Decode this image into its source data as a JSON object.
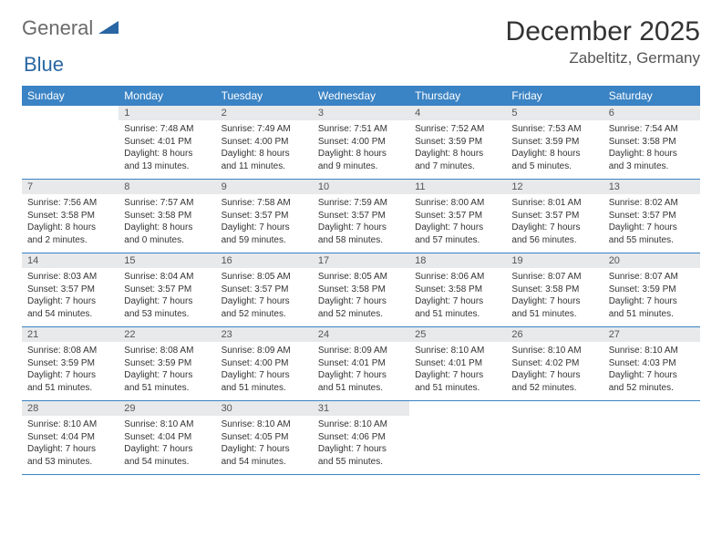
{
  "logo": {
    "text1": "General",
    "text2": "Blue"
  },
  "title": "December 2025",
  "location": "Zabeltitz, Germany",
  "colors": {
    "header_bg": "#3a83c4",
    "header_text": "#ffffff",
    "daynum_bg": "#e7e9eb",
    "daynum_text": "#555555",
    "row_border": "#3a83c4",
    "logo_gray": "#6a6a6a",
    "logo_blue": "#2966a3",
    "body_text": "#333333",
    "background": "#ffffff"
  },
  "typography": {
    "title_fontsize": 30,
    "location_fontsize": 17,
    "weekday_fontsize": 12,
    "daynum_fontsize": 11,
    "content_fontsize": 10,
    "font_family": "Arial"
  },
  "layout": {
    "columns": 7,
    "rows": 5,
    "first_weekday_offset": 1
  },
  "weekdays": [
    "Sunday",
    "Monday",
    "Tuesday",
    "Wednesday",
    "Thursday",
    "Friday",
    "Saturday"
  ],
  "days": [
    {
      "n": 1,
      "sr": "7:48 AM",
      "ss": "4:01 PM",
      "dl": "8 hours and 13 minutes."
    },
    {
      "n": 2,
      "sr": "7:49 AM",
      "ss": "4:00 PM",
      "dl": "8 hours and 11 minutes."
    },
    {
      "n": 3,
      "sr": "7:51 AM",
      "ss": "4:00 PM",
      "dl": "8 hours and 9 minutes."
    },
    {
      "n": 4,
      "sr": "7:52 AM",
      "ss": "3:59 PM",
      "dl": "8 hours and 7 minutes."
    },
    {
      "n": 5,
      "sr": "7:53 AM",
      "ss": "3:59 PM",
      "dl": "8 hours and 5 minutes."
    },
    {
      "n": 6,
      "sr": "7:54 AM",
      "ss": "3:58 PM",
      "dl": "8 hours and 3 minutes."
    },
    {
      "n": 7,
      "sr": "7:56 AM",
      "ss": "3:58 PM",
      "dl": "8 hours and 2 minutes."
    },
    {
      "n": 8,
      "sr": "7:57 AM",
      "ss": "3:58 PM",
      "dl": "8 hours and 0 minutes."
    },
    {
      "n": 9,
      "sr": "7:58 AM",
      "ss": "3:57 PM",
      "dl": "7 hours and 59 minutes."
    },
    {
      "n": 10,
      "sr": "7:59 AM",
      "ss": "3:57 PM",
      "dl": "7 hours and 58 minutes."
    },
    {
      "n": 11,
      "sr": "8:00 AM",
      "ss": "3:57 PM",
      "dl": "7 hours and 57 minutes."
    },
    {
      "n": 12,
      "sr": "8:01 AM",
      "ss": "3:57 PM",
      "dl": "7 hours and 56 minutes."
    },
    {
      "n": 13,
      "sr": "8:02 AM",
      "ss": "3:57 PM",
      "dl": "7 hours and 55 minutes."
    },
    {
      "n": 14,
      "sr": "8:03 AM",
      "ss": "3:57 PM",
      "dl": "7 hours and 54 minutes."
    },
    {
      "n": 15,
      "sr": "8:04 AM",
      "ss": "3:57 PM",
      "dl": "7 hours and 53 minutes."
    },
    {
      "n": 16,
      "sr": "8:05 AM",
      "ss": "3:57 PM",
      "dl": "7 hours and 52 minutes."
    },
    {
      "n": 17,
      "sr": "8:05 AM",
      "ss": "3:58 PM",
      "dl": "7 hours and 52 minutes."
    },
    {
      "n": 18,
      "sr": "8:06 AM",
      "ss": "3:58 PM",
      "dl": "7 hours and 51 minutes."
    },
    {
      "n": 19,
      "sr": "8:07 AM",
      "ss": "3:58 PM",
      "dl": "7 hours and 51 minutes."
    },
    {
      "n": 20,
      "sr": "8:07 AM",
      "ss": "3:59 PM",
      "dl": "7 hours and 51 minutes."
    },
    {
      "n": 21,
      "sr": "8:08 AM",
      "ss": "3:59 PM",
      "dl": "7 hours and 51 minutes."
    },
    {
      "n": 22,
      "sr": "8:08 AM",
      "ss": "3:59 PM",
      "dl": "7 hours and 51 minutes."
    },
    {
      "n": 23,
      "sr": "8:09 AM",
      "ss": "4:00 PM",
      "dl": "7 hours and 51 minutes."
    },
    {
      "n": 24,
      "sr": "8:09 AM",
      "ss": "4:01 PM",
      "dl": "7 hours and 51 minutes."
    },
    {
      "n": 25,
      "sr": "8:10 AM",
      "ss": "4:01 PM",
      "dl": "7 hours and 51 minutes."
    },
    {
      "n": 26,
      "sr": "8:10 AM",
      "ss": "4:02 PM",
      "dl": "7 hours and 52 minutes."
    },
    {
      "n": 27,
      "sr": "8:10 AM",
      "ss": "4:03 PM",
      "dl": "7 hours and 52 minutes."
    },
    {
      "n": 28,
      "sr": "8:10 AM",
      "ss": "4:04 PM",
      "dl": "7 hours and 53 minutes."
    },
    {
      "n": 29,
      "sr": "8:10 AM",
      "ss": "4:04 PM",
      "dl": "7 hours and 54 minutes."
    },
    {
      "n": 30,
      "sr": "8:10 AM",
      "ss": "4:05 PM",
      "dl": "7 hours and 54 minutes."
    },
    {
      "n": 31,
      "sr": "8:10 AM",
      "ss": "4:06 PM",
      "dl": "7 hours and 55 minutes."
    }
  ],
  "labels": {
    "sunrise": "Sunrise:",
    "sunset": "Sunset:",
    "daylight": "Daylight:"
  }
}
